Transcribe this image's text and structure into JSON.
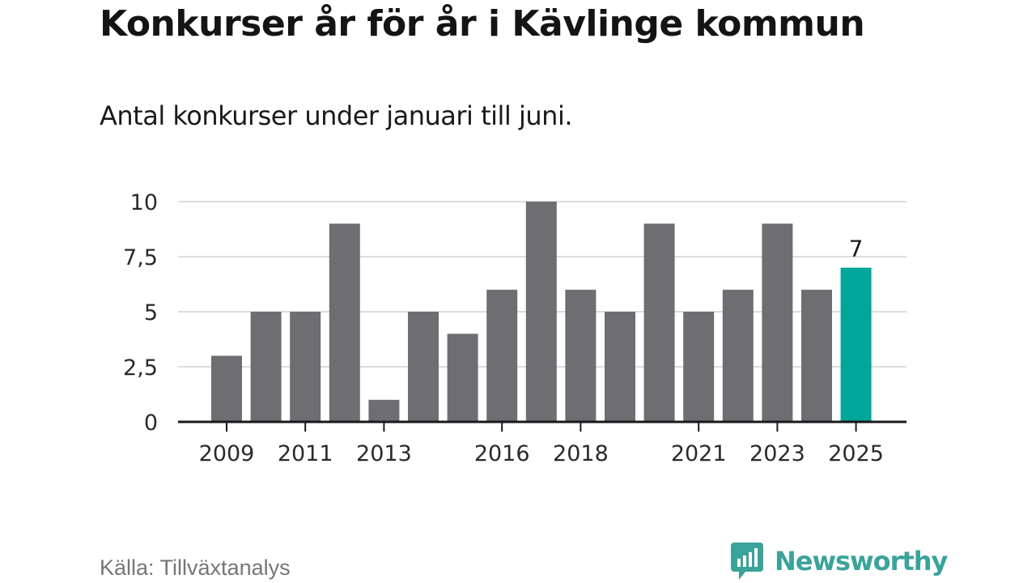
{
  "title": "Konkurser år för år i Kävlinge kommun",
  "subtitle": "Antal konkurser under januari till juni.",
  "source": "Källa: Tillväxtanalys",
  "brand": {
    "name": "Newsworthy",
    "icon": "newsworthy-logo-icon"
  },
  "colors": {
    "bar": "#6e6d72",
    "highlight": "#00a699",
    "grid": "#dcdcdc",
    "axis": "#1a1a1a",
    "brand": "#3aa39a"
  },
  "chart_data": {
    "type": "bar",
    "title": "Konkurser år för år i Kävlinge kommun",
    "subtitle": "Antal konkurser under januari till juni.",
    "xlabel": "",
    "ylabel": "",
    "categories": [
      "2009",
      "2010",
      "2011",
      "2012",
      "2013",
      "2014",
      "2015",
      "2016",
      "2017",
      "2018",
      "2019",
      "2020",
      "2021",
      "2022",
      "2023",
      "2024",
      "2025"
    ],
    "values": [
      3,
      5,
      5,
      9,
      1,
      5,
      4,
      6,
      10,
      6,
      5,
      9,
      5,
      6,
      9,
      6,
      7
    ],
    "x_tick_labels": [
      "2009",
      "2011",
      "2013",
      "2016",
      "2018",
      "2021",
      "2023",
      "2025"
    ],
    "y_tick_values": [
      0,
      2.5,
      5,
      7.5,
      10
    ],
    "y_tick_labels": [
      "0",
      "2,5",
      "5",
      "7,5",
      "10"
    ],
    "ylim": [
      0,
      10
    ],
    "grid": true,
    "highlight": {
      "category": "2025",
      "label": "7"
    }
  }
}
